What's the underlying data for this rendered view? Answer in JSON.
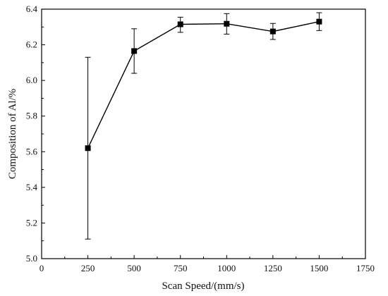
{
  "chart_data": {
    "type": "line",
    "xlabel": "Scan Speed/(mm/s)",
    "ylabel": "Composition of Al/%",
    "xlim": [
      0,
      1750
    ],
    "ylim": [
      5.0,
      6.4
    ],
    "xticks": [
      0,
      250,
      500,
      750,
      1000,
      1250,
      1500,
      1750
    ],
    "yticks": [
      5.0,
      5.2,
      5.4,
      5.6,
      5.8,
      6.0,
      6.2,
      6.4
    ],
    "xtick_labels": [
      "0",
      "250",
      "500",
      "750",
      "1000",
      "1250",
      "1500",
      "1750"
    ],
    "ytick_labels": [
      "5.0",
      "5.2",
      "5.4",
      "5.6",
      "5.8",
      "6.0",
      "6.2",
      "6.4"
    ],
    "grid": false,
    "series": [
      {
        "marker": "square",
        "color": "#000000",
        "x": [
          250,
          500,
          750,
          1000,
          1250,
          1500
        ],
        "y": [
          5.62,
          6.165,
          6.315,
          6.318,
          6.275,
          6.33
        ],
        "err_low": [
          5.11,
          6.04,
          6.27,
          6.26,
          6.23,
          6.28
        ],
        "err_high": [
          6.13,
          6.29,
          6.355,
          6.375,
          6.32,
          6.38
        ]
      }
    ]
  }
}
